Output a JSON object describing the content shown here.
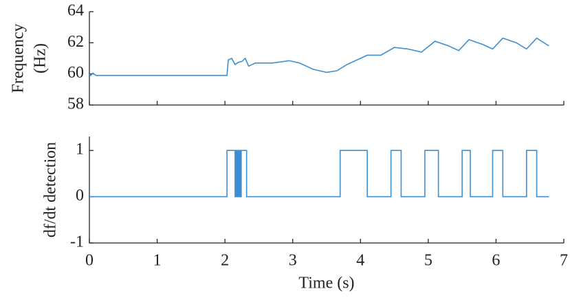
{
  "chart_data": [
    {
      "type": "line",
      "y_label": [
        "Frequency",
        "(Hz)"
      ],
      "xlim": [
        0,
        7
      ],
      "xticks": [
        0,
        1,
        2,
        3,
        4,
        5,
        6,
        7
      ],
      "ylim": [
        58,
        64
      ],
      "yticks": [
        58,
        60,
        62,
        64
      ],
      "series": [
        {
          "color": "#3d8fd1",
          "x": [
            0,
            0.02,
            0.05,
            0.1,
            0.3,
            1.0,
            2.03,
            2.05,
            2.1,
            2.15,
            2.2,
            2.25,
            2.3,
            2.35,
            2.45,
            2.7,
            2.95,
            3.1,
            3.3,
            3.5,
            3.65,
            3.8,
            4.1,
            4.3,
            4.5,
            4.7,
            4.9,
            5.1,
            5.3,
            5.45,
            5.6,
            5.8,
            5.95,
            6.1,
            6.3,
            6.45,
            6.6,
            6.78
          ],
          "values": [
            60.0,
            59.9,
            60.05,
            59.9,
            59.9,
            59.9,
            59.9,
            60.9,
            61.0,
            60.6,
            60.75,
            60.8,
            61.0,
            60.5,
            60.7,
            60.7,
            60.85,
            60.7,
            60.3,
            60.1,
            60.2,
            60.6,
            61.2,
            61.2,
            61.7,
            61.6,
            61.4,
            62.1,
            61.8,
            61.5,
            62.2,
            61.9,
            61.6,
            62.3,
            62.0,
            61.6,
            62.3,
            61.8
          ]
        }
      ]
    },
    {
      "type": "line",
      "y_label": "df/dt detection",
      "x_label": "Time (s)",
      "xlim": [
        0,
        7
      ],
      "xticks": [
        0,
        1,
        2,
        3,
        4,
        5,
        6,
        7
      ],
      "ylim": [
        -1,
        1.3
      ],
      "yticks": [
        -1,
        0,
        1
      ],
      "series": [
        {
          "color": "#3d8fd1",
          "x": [
            0,
            2.03,
            2.03,
            2.15,
            2.15,
            2.16,
            2.16,
            2.17,
            2.17,
            2.18,
            2.18,
            2.19,
            2.19,
            2.2,
            2.2,
            2.21,
            2.21,
            2.22,
            2.22,
            2.23,
            2.23,
            2.24,
            2.24,
            2.32,
            2.32,
            3.7,
            3.7,
            4.1,
            4.1,
            4.45,
            4.45,
            4.6,
            4.6,
            4.95,
            4.95,
            5.15,
            5.15,
            5.5,
            5.5,
            5.62,
            5.62,
            5.95,
            5.95,
            6.1,
            6.1,
            6.45,
            6.45,
            6.6,
            6.6,
            6.78
          ],
          "values": [
            0,
            0,
            1,
            1,
            0,
            0,
            1,
            1,
            0,
            0,
            1,
            1,
            0,
            0,
            1,
            1,
            0,
            0,
            1,
            1,
            0,
            0,
            1,
            1,
            0,
            0,
            1,
            1,
            0,
            0,
            1,
            1,
            0,
            0,
            1,
            1,
            0,
            0,
            1,
            1,
            0,
            0,
            1,
            1,
            0,
            0,
            1,
            1,
            0,
            0
          ]
        }
      ]
    }
  ]
}
